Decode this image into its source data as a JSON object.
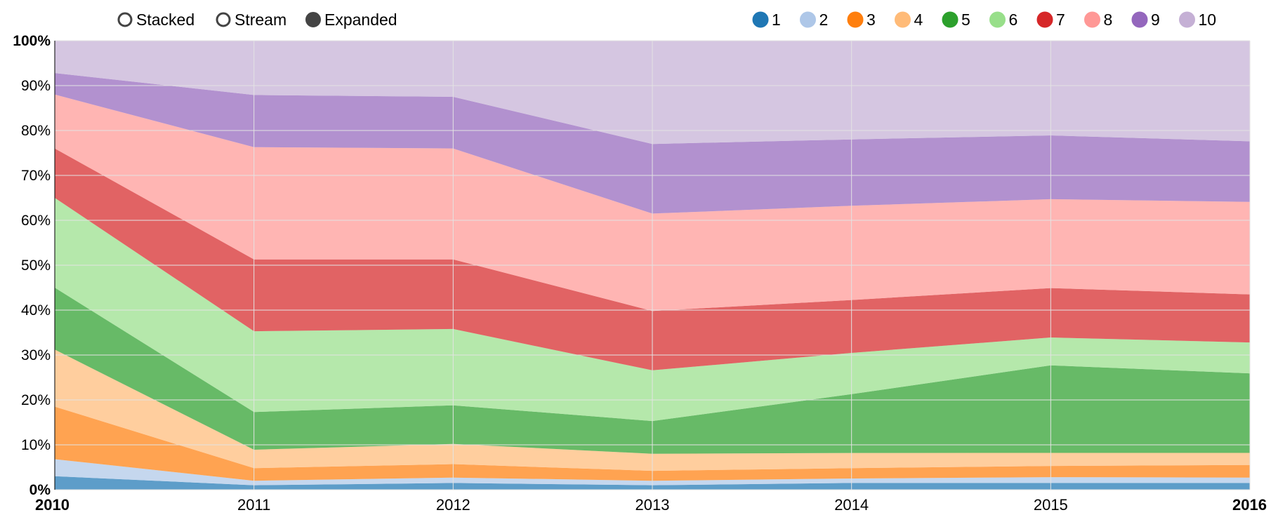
{
  "controls": {
    "options": [
      {
        "label": "Stacked",
        "selected": false
      },
      {
        "label": "Stream",
        "selected": false
      },
      {
        "label": "Expanded",
        "selected": true
      }
    ]
  },
  "chart_data": {
    "type": "area",
    "mode": "expanded",
    "x": [
      2010,
      2011,
      2012,
      2013,
      2014,
      2015,
      2016
    ],
    "x_tick_labels": [
      "2010",
      "2011",
      "2012",
      "2013",
      "2014",
      "2015",
      "2016"
    ],
    "y_tick_labels": [
      "0%",
      "10%",
      "20%",
      "30%",
      "40%",
      "50%",
      "60%",
      "70%",
      "80%",
      "90%",
      "100%"
    ],
    "ylim": [
      0,
      100
    ],
    "y_unit": "%",
    "grid": true,
    "legend_position": "top-right",
    "series": [
      {
        "name": "1",
        "color": "#1f77b4",
        "values": [
          3.0,
          1.0,
          1.5,
          1.0,
          1.5,
          1.5,
          1.5
        ]
      },
      {
        "name": "2",
        "color": "#aec7e8",
        "values": [
          3.8,
          1.0,
          1.2,
          1.0,
          1.0,
          1.3,
          1.2
        ]
      },
      {
        "name": "3",
        "color": "#ff7f0e",
        "values": [
          11.7,
          2.8,
          3.0,
          2.2,
          2.3,
          2.5,
          2.8
        ]
      },
      {
        "name": "4",
        "color": "#ffbb78",
        "values": [
          12.7,
          4.1,
          4.5,
          3.8,
          3.4,
          2.9,
          2.7
        ]
      },
      {
        "name": "5",
        "color": "#2ca02c",
        "values": [
          13.8,
          8.4,
          8.6,
          7.3,
          13.1,
          19.5,
          17.7
        ]
      },
      {
        "name": "6",
        "color": "#98df8a",
        "values": [
          20.0,
          18.0,
          17.0,
          11.3,
          9.2,
          6.2,
          6.9
        ]
      },
      {
        "name": "7",
        "color": "#d62728",
        "values": [
          11.0,
          16.0,
          15.5,
          13.2,
          11.8,
          11.0,
          10.7
        ]
      },
      {
        "name": "8",
        "color": "#ff9896",
        "values": [
          12.0,
          25.0,
          24.7,
          21.7,
          21.0,
          19.8,
          20.6
        ]
      },
      {
        "name": "9",
        "color": "#9467bd",
        "values": [
          4.8,
          11.6,
          11.5,
          15.5,
          14.8,
          14.2,
          13.5
        ]
      },
      {
        "name": "10",
        "color": "#c5b0d5",
        "values": [
          7.2,
          12.1,
          12.5,
          23.0,
          22.0,
          21.1,
          22.4
        ]
      }
    ]
  }
}
